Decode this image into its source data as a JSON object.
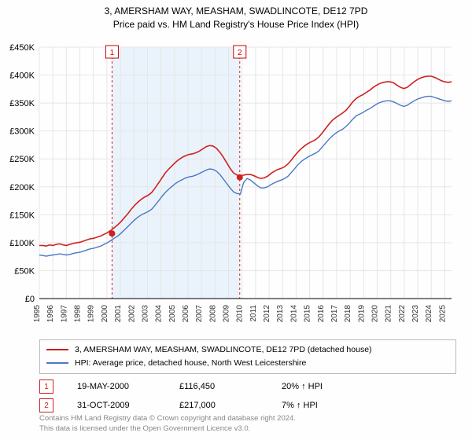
{
  "title_line1": "3, AMERSHAM WAY, MEASHAM, SWADLINCOTE, DE12 7PD",
  "title_line2": "Price paid vs. HM Land Registry's House Price Index (HPI)",
  "chart": {
    "type": "line",
    "background_color": "#fefefe",
    "grid_color": "#e6e6e6",
    "shaded_band_color": "#eaf3fb",
    "shaded_band_xstart": 2000.38,
    "shaded_band_xend": 2009.83,
    "xlim": [
      1995,
      2025.5
    ],
    "ylim": [
      0,
      450000
    ],
    "ytick_step": 50000,
    "yticks": [
      "£0",
      "£50K",
      "£100K",
      "£150K",
      "£200K",
      "£250K",
      "£300K",
      "£350K",
      "£400K",
      "£450K"
    ],
    "xtick_step": 1,
    "xticks": [
      "1995",
      "1996",
      "1997",
      "1998",
      "1999",
      "2000",
      "2001",
      "2002",
      "2003",
      "2004",
      "2005",
      "2006",
      "2007",
      "2008",
      "2009",
      "2010",
      "2011",
      "2012",
      "2013",
      "2014",
      "2015",
      "2016",
      "2017",
      "2018",
      "2019",
      "2020",
      "2021",
      "2022",
      "2023",
      "2024",
      "2025"
    ],
    "xlabel_fontsize": 10,
    "ylabel_fontsize": 11,
    "series": [
      {
        "name_key": "legend.line1",
        "color": "#d02020",
        "width": 1.6,
        "y": [
          95,
          95,
          94,
          96,
          95,
          97,
          98,
          96,
          95,
          97,
          99,
          100,
          101,
          103,
          105,
          107,
          108,
          110,
          112,
          115,
          118,
          122,
          127,
          132,
          138,
          145,
          152,
          160,
          167,
          173,
          178,
          182,
          185,
          190,
          198,
          207,
          216,
          225,
          232,
          238,
          244,
          249,
          253,
          256,
          258,
          259,
          261,
          264,
          268,
          272,
          274,
          273,
          269,
          262,
          253,
          243,
          233,
          225,
          221,
          220,
          221,
          222,
          222,
          220,
          217,
          215,
          216,
          219,
          224,
          228,
          231,
          233,
          236,
          241,
          248,
          256,
          263,
          269,
          274,
          278,
          281,
          284,
          289,
          296,
          304,
          312,
          319,
          324,
          328,
          332,
          337,
          344,
          352,
          358,
          362,
          365,
          369,
          373,
          378,
          382,
          385,
          387,
          388,
          388,
          386,
          382,
          378,
          376,
          378,
          383,
          388,
          392,
          395,
          397,
          398,
          398,
          396,
          393,
          390,
          388,
          387,
          388
        ]
      },
      {
        "name_key": "legend.line2",
        "color": "#4a78c4",
        "width": 1.4,
        "y": [
          78,
          77,
          76,
          77,
          78,
          79,
          80,
          79,
          78,
          79,
          81,
          82,
          83,
          85,
          87,
          89,
          90,
          92,
          94,
          97,
          100,
          104,
          108,
          112,
          117,
          123,
          129,
          135,
          141,
          146,
          150,
          153,
          156,
          160,
          167,
          175,
          183,
          190,
          196,
          201,
          206,
          210,
          213,
          216,
          218,
          219,
          221,
          224,
          227,
          230,
          232,
          231,
          228,
          222,
          214,
          206,
          198,
          191,
          188,
          187,
          208,
          215,
          212,
          207,
          202,
          198,
          198,
          200,
          204,
          207,
          210,
          212,
          215,
          219,
          226,
          233,
          240,
          246,
          250,
          254,
          257,
          260,
          264,
          271,
          278,
          285,
          291,
          296,
          300,
          303,
          308,
          314,
          321,
          327,
          330,
          333,
          337,
          340,
          344,
          348,
          351,
          353,
          354,
          354,
          352,
          349,
          346,
          344,
          346,
          350,
          354,
          357,
          359,
          361,
          362,
          362,
          360,
          358,
          356,
          354,
          353,
          354
        ]
      }
    ],
    "markers": [
      {
        "x": 2000.38,
        "y": 116450,
        "color": "#d02020",
        "r": 4,
        "label": "1"
      },
      {
        "x": 2009.83,
        "y": 217000,
        "color": "#d02020",
        "r": 4,
        "label": "2"
      }
    ],
    "flag_lines": [
      {
        "x": 2000.38,
        "label": "1",
        "color": "#d02020"
      },
      {
        "x": 2009.83,
        "label": "2",
        "color": "#d02020"
      }
    ]
  },
  "legend": {
    "line1": "3, AMERSHAM WAY, MEASHAM, SWADLINCOTE, DE12 7PD (detached house)",
    "line2": "HPI: Average price, detached house, North West Leicestershire"
  },
  "events": [
    {
      "marker": "1",
      "marker_color": "#d02020",
      "date": "19-MAY-2000",
      "price": "£116,450",
      "delta": "20% ↑ HPI"
    },
    {
      "marker": "2",
      "marker_color": "#d02020",
      "date": "31-OCT-2009",
      "price": "£217,000",
      "delta": "7% ↑ HPI"
    }
  ],
  "footer_line1": "Contains HM Land Registry data © Crown copyright and database right 2024.",
  "footer_line2": "This data is licensed under the Open Government Licence v3.0."
}
